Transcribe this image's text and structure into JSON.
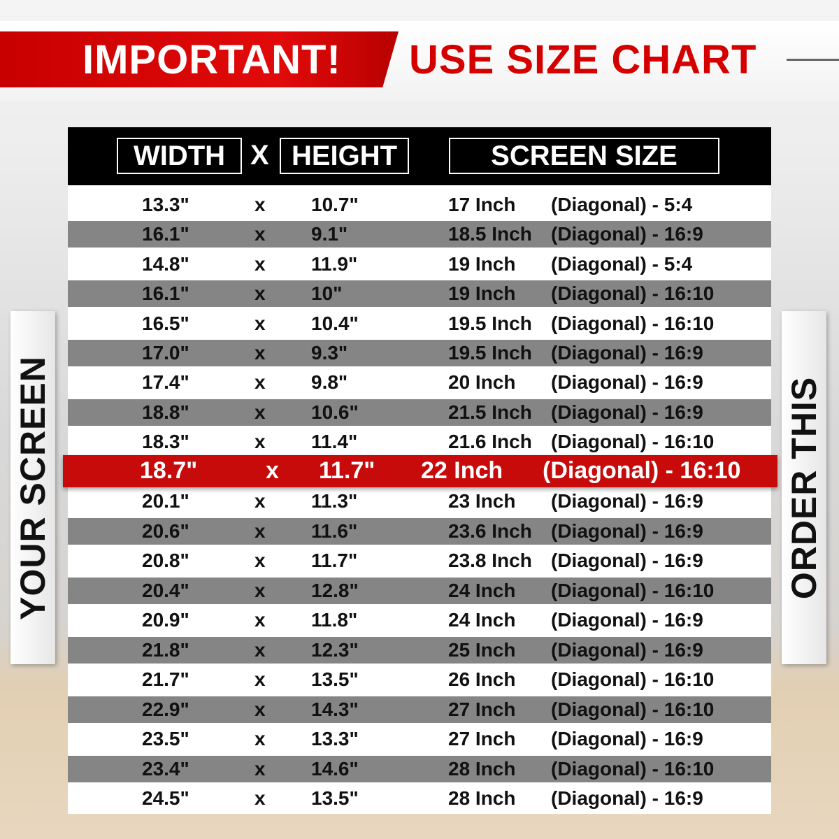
{
  "banner": {
    "important": "IMPORTANT!",
    "use_size_chart": "USE SIZE CHART"
  },
  "header": {
    "width": "WIDTH",
    "x": "X",
    "height": "HEIGHT",
    "screen_size": "SCREEN SIZE"
  },
  "side": {
    "left": "YOUR SCREEN",
    "right": "ORDER THIS"
  },
  "colors": {
    "accent": "#c70a0a",
    "header": "#000000",
    "alt_row": "#858585"
  },
  "highlight_index": 9,
  "rows": [
    {
      "w": "13.3\"",
      "x": "x",
      "h": "10.7\"",
      "size": "17 Inch",
      "diag": "(Diagonal) - 5:4"
    },
    {
      "w": "16.1\"",
      "x": "x",
      "h": "9.1\"",
      "size": "18.5 Inch",
      "diag": "(Diagonal) - 16:9"
    },
    {
      "w": "14.8\"",
      "x": "x",
      "h": "11.9\"",
      "size": "19 Inch",
      "diag": "(Diagonal) - 5:4"
    },
    {
      "w": "16.1\"",
      "x": "x",
      "h": "10\"",
      "size": "19 Inch",
      "diag": "(Diagonal) - 16:10"
    },
    {
      "w": "16.5\"",
      "x": "x",
      "h": "10.4\"",
      "size": "19.5 Inch",
      "diag": "(Diagonal) - 16:10"
    },
    {
      "w": "17.0\"",
      "x": "x",
      "h": "9.3\"",
      "size": "19.5 Inch",
      "diag": "(Diagonal) - 16:9"
    },
    {
      "w": "17.4\"",
      "x": "x",
      "h": "9.8\"",
      "size": "20 Inch",
      "diag": "(Diagonal) - 16:9"
    },
    {
      "w": "18.8\"",
      "x": "x",
      "h": "10.6\"",
      "size": "21.5 Inch",
      "diag": "(Diagonal) - 16:9"
    },
    {
      "w": "18.3\"",
      "x": "x",
      "h": "11.4\"",
      "size": "21.6 Inch",
      "diag": "(Diagonal) - 16:10"
    },
    {
      "w": "18.7\"",
      "x": "x",
      "h": "11.7\"",
      "size": "22 Inch",
      "diag": "(Diagonal) - 16:10"
    },
    {
      "w": "20.1\"",
      "x": "x",
      "h": "11.3\"",
      "size": "23 Inch",
      "diag": "(Diagonal) - 16:9"
    },
    {
      "w": "20.6\"",
      "x": "x",
      "h": "11.6\"",
      "size": "23.6 Inch",
      "diag": "(Diagonal) - 16:9"
    },
    {
      "w": "20.8\"",
      "x": "x",
      "h": "11.7\"",
      "size": "23.8 Inch",
      "diag": "(Diagonal) - 16:9"
    },
    {
      "w": "20.4\"",
      "x": "x",
      "h": "12.8\"",
      "size": "24 Inch",
      "diag": "(Diagonal) - 16:10"
    },
    {
      "w": "20.9\"",
      "x": "x",
      "h": "11.8\"",
      "size": "24 Inch",
      "diag": "(Diagonal) - 16:9"
    },
    {
      "w": "21.8\"",
      "x": "x",
      "h": "12.3\"",
      "size": "25 Inch",
      "diag": "(Diagonal) - 16:9"
    },
    {
      "w": "21.7\"",
      "x": "x",
      "h": "13.5\"",
      "size": "26 Inch",
      "diag": "(Diagonal) - 16:10"
    },
    {
      "w": "22.9\"",
      "x": "x",
      "h": "14.3\"",
      "size": "27 Inch",
      "diag": "(Diagonal) - 16:10"
    },
    {
      "w": "23.5\"",
      "x": "x",
      "h": "13.3\"",
      "size": "27 Inch",
      "diag": "(Diagonal) - 16:9"
    },
    {
      "w": "23.4\"",
      "x": "x",
      "h": "14.6\"",
      "size": "28 Inch",
      "diag": "(Diagonal) - 16:10"
    },
    {
      "w": "24.5\"",
      "x": "x",
      "h": "13.5\"",
      "size": "28 Inch",
      "diag": "(Diagonal) - 16:9"
    }
  ]
}
